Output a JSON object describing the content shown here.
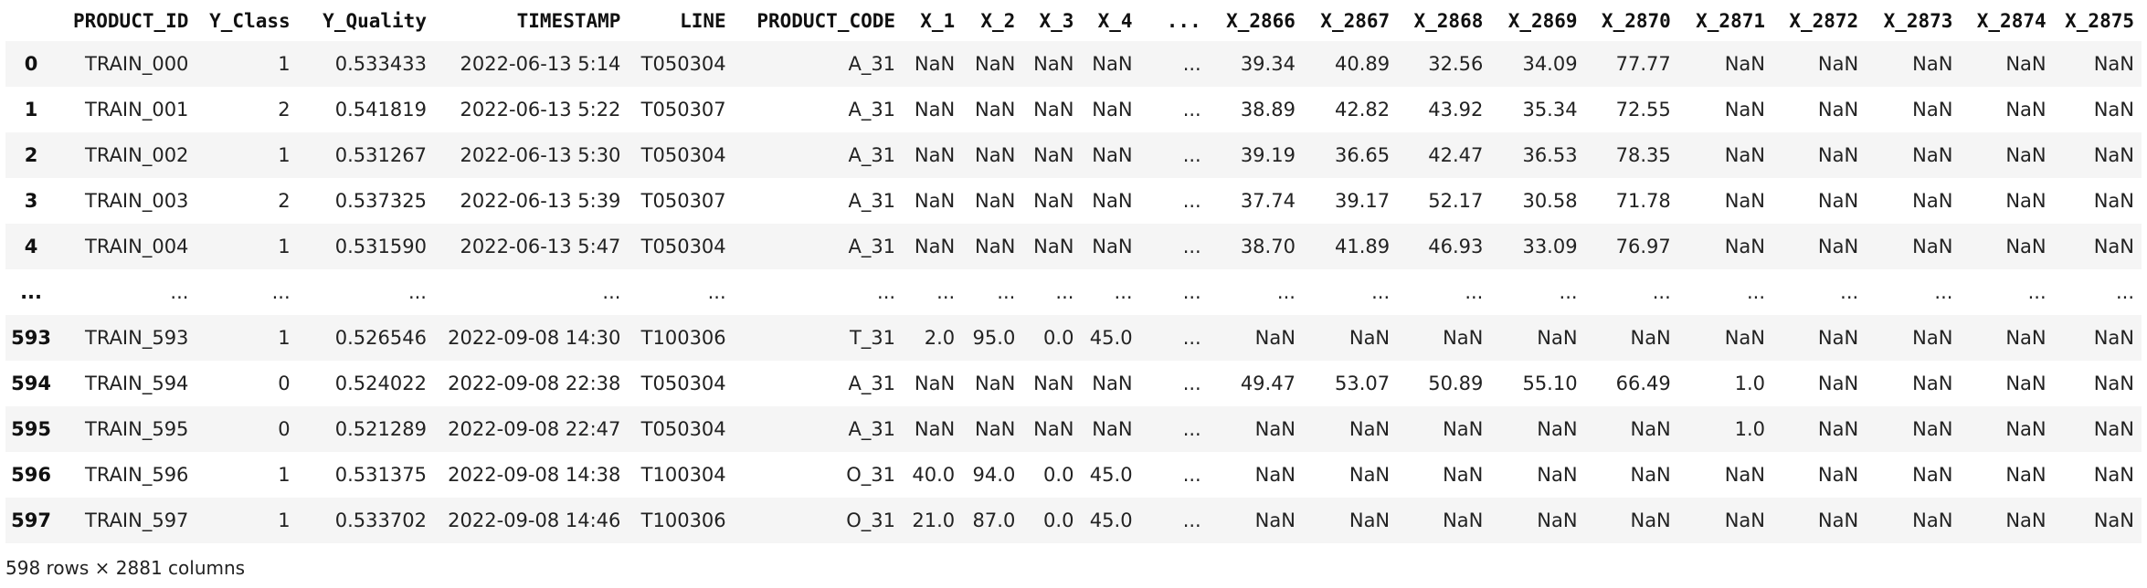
{
  "columns": [
    "PRODUCT_ID",
    "Y_Class",
    "Y_Quality",
    "TIMESTAMP",
    "LINE",
    "PRODUCT_CODE",
    "X_1",
    "X_2",
    "X_3",
    "X_4",
    "...",
    "X_2866",
    "X_2867",
    "X_2868",
    "X_2869",
    "X_2870",
    "X_2871",
    "X_2872",
    "X_2873",
    "X_2874",
    "X_2875"
  ],
  "rows": [
    {
      "index": "0",
      "cells": [
        "TRAIN_000",
        "1",
        "0.533433",
        "2022-06-13 5:14",
        "T050304",
        "A_31",
        "NaN",
        "NaN",
        "NaN",
        "NaN",
        "...",
        "39.34",
        "40.89",
        "32.56",
        "34.09",
        "77.77",
        "NaN",
        "NaN",
        "NaN",
        "NaN",
        "NaN"
      ]
    },
    {
      "index": "1",
      "cells": [
        "TRAIN_001",
        "2",
        "0.541819",
        "2022-06-13 5:22",
        "T050307",
        "A_31",
        "NaN",
        "NaN",
        "NaN",
        "NaN",
        "...",
        "38.89",
        "42.82",
        "43.92",
        "35.34",
        "72.55",
        "NaN",
        "NaN",
        "NaN",
        "NaN",
        "NaN"
      ]
    },
    {
      "index": "2",
      "cells": [
        "TRAIN_002",
        "1",
        "0.531267",
        "2022-06-13 5:30",
        "T050304",
        "A_31",
        "NaN",
        "NaN",
        "NaN",
        "NaN",
        "...",
        "39.19",
        "36.65",
        "42.47",
        "36.53",
        "78.35",
        "NaN",
        "NaN",
        "NaN",
        "NaN",
        "NaN"
      ]
    },
    {
      "index": "3",
      "cells": [
        "TRAIN_003",
        "2",
        "0.537325",
        "2022-06-13 5:39",
        "T050307",
        "A_31",
        "NaN",
        "NaN",
        "NaN",
        "NaN",
        "...",
        "37.74",
        "39.17",
        "52.17",
        "30.58",
        "71.78",
        "NaN",
        "NaN",
        "NaN",
        "NaN",
        "NaN"
      ]
    },
    {
      "index": "4",
      "cells": [
        "TRAIN_004",
        "1",
        "0.531590",
        "2022-06-13 5:47",
        "T050304",
        "A_31",
        "NaN",
        "NaN",
        "NaN",
        "NaN",
        "...",
        "38.70",
        "41.89",
        "46.93",
        "33.09",
        "76.97",
        "NaN",
        "NaN",
        "NaN",
        "NaN",
        "NaN"
      ]
    },
    {
      "index": "...",
      "cells": [
        "...",
        "...",
        "...",
        "...",
        "...",
        "...",
        "...",
        "...",
        "...",
        "...",
        "...",
        "...",
        "...",
        "...",
        "...",
        "...",
        "...",
        "...",
        "...",
        "...",
        "..."
      ]
    },
    {
      "index": "593",
      "cells": [
        "TRAIN_593",
        "1",
        "0.526546",
        "2022-09-08 14:30",
        "T100306",
        "T_31",
        "2.0",
        "95.0",
        "0.0",
        "45.0",
        "...",
        "NaN",
        "NaN",
        "NaN",
        "NaN",
        "NaN",
        "NaN",
        "NaN",
        "NaN",
        "NaN",
        "NaN"
      ]
    },
    {
      "index": "594",
      "cells": [
        "TRAIN_594",
        "0",
        "0.524022",
        "2022-09-08 22:38",
        "T050304",
        "A_31",
        "NaN",
        "NaN",
        "NaN",
        "NaN",
        "...",
        "49.47",
        "53.07",
        "50.89",
        "55.10",
        "66.49",
        "1.0",
        "NaN",
        "NaN",
        "NaN",
        "NaN"
      ]
    },
    {
      "index": "595",
      "cells": [
        "TRAIN_595",
        "0",
        "0.521289",
        "2022-09-08 22:47",
        "T050304",
        "A_31",
        "NaN",
        "NaN",
        "NaN",
        "NaN",
        "...",
        "NaN",
        "NaN",
        "NaN",
        "NaN",
        "NaN",
        "1.0",
        "NaN",
        "NaN",
        "NaN",
        "NaN"
      ]
    },
    {
      "index": "596",
      "cells": [
        "TRAIN_596",
        "1",
        "0.531375",
        "2022-09-08 14:38",
        "T100304",
        "O_31",
        "40.0",
        "94.0",
        "0.0",
        "45.0",
        "...",
        "NaN",
        "NaN",
        "NaN",
        "NaN",
        "NaN",
        "NaN",
        "NaN",
        "NaN",
        "NaN",
        "NaN"
      ]
    },
    {
      "index": "597",
      "cells": [
        "TRAIN_597",
        "1",
        "0.533702",
        "2022-09-08 14:46",
        "T100306",
        "O_31",
        "21.0",
        "87.0",
        "0.0",
        "45.0",
        "...",
        "NaN",
        "NaN",
        "NaN",
        "NaN",
        "NaN",
        "NaN",
        "NaN",
        "NaN",
        "NaN",
        "NaN"
      ]
    }
  ],
  "footer": "598 rows × 2881 columns"
}
